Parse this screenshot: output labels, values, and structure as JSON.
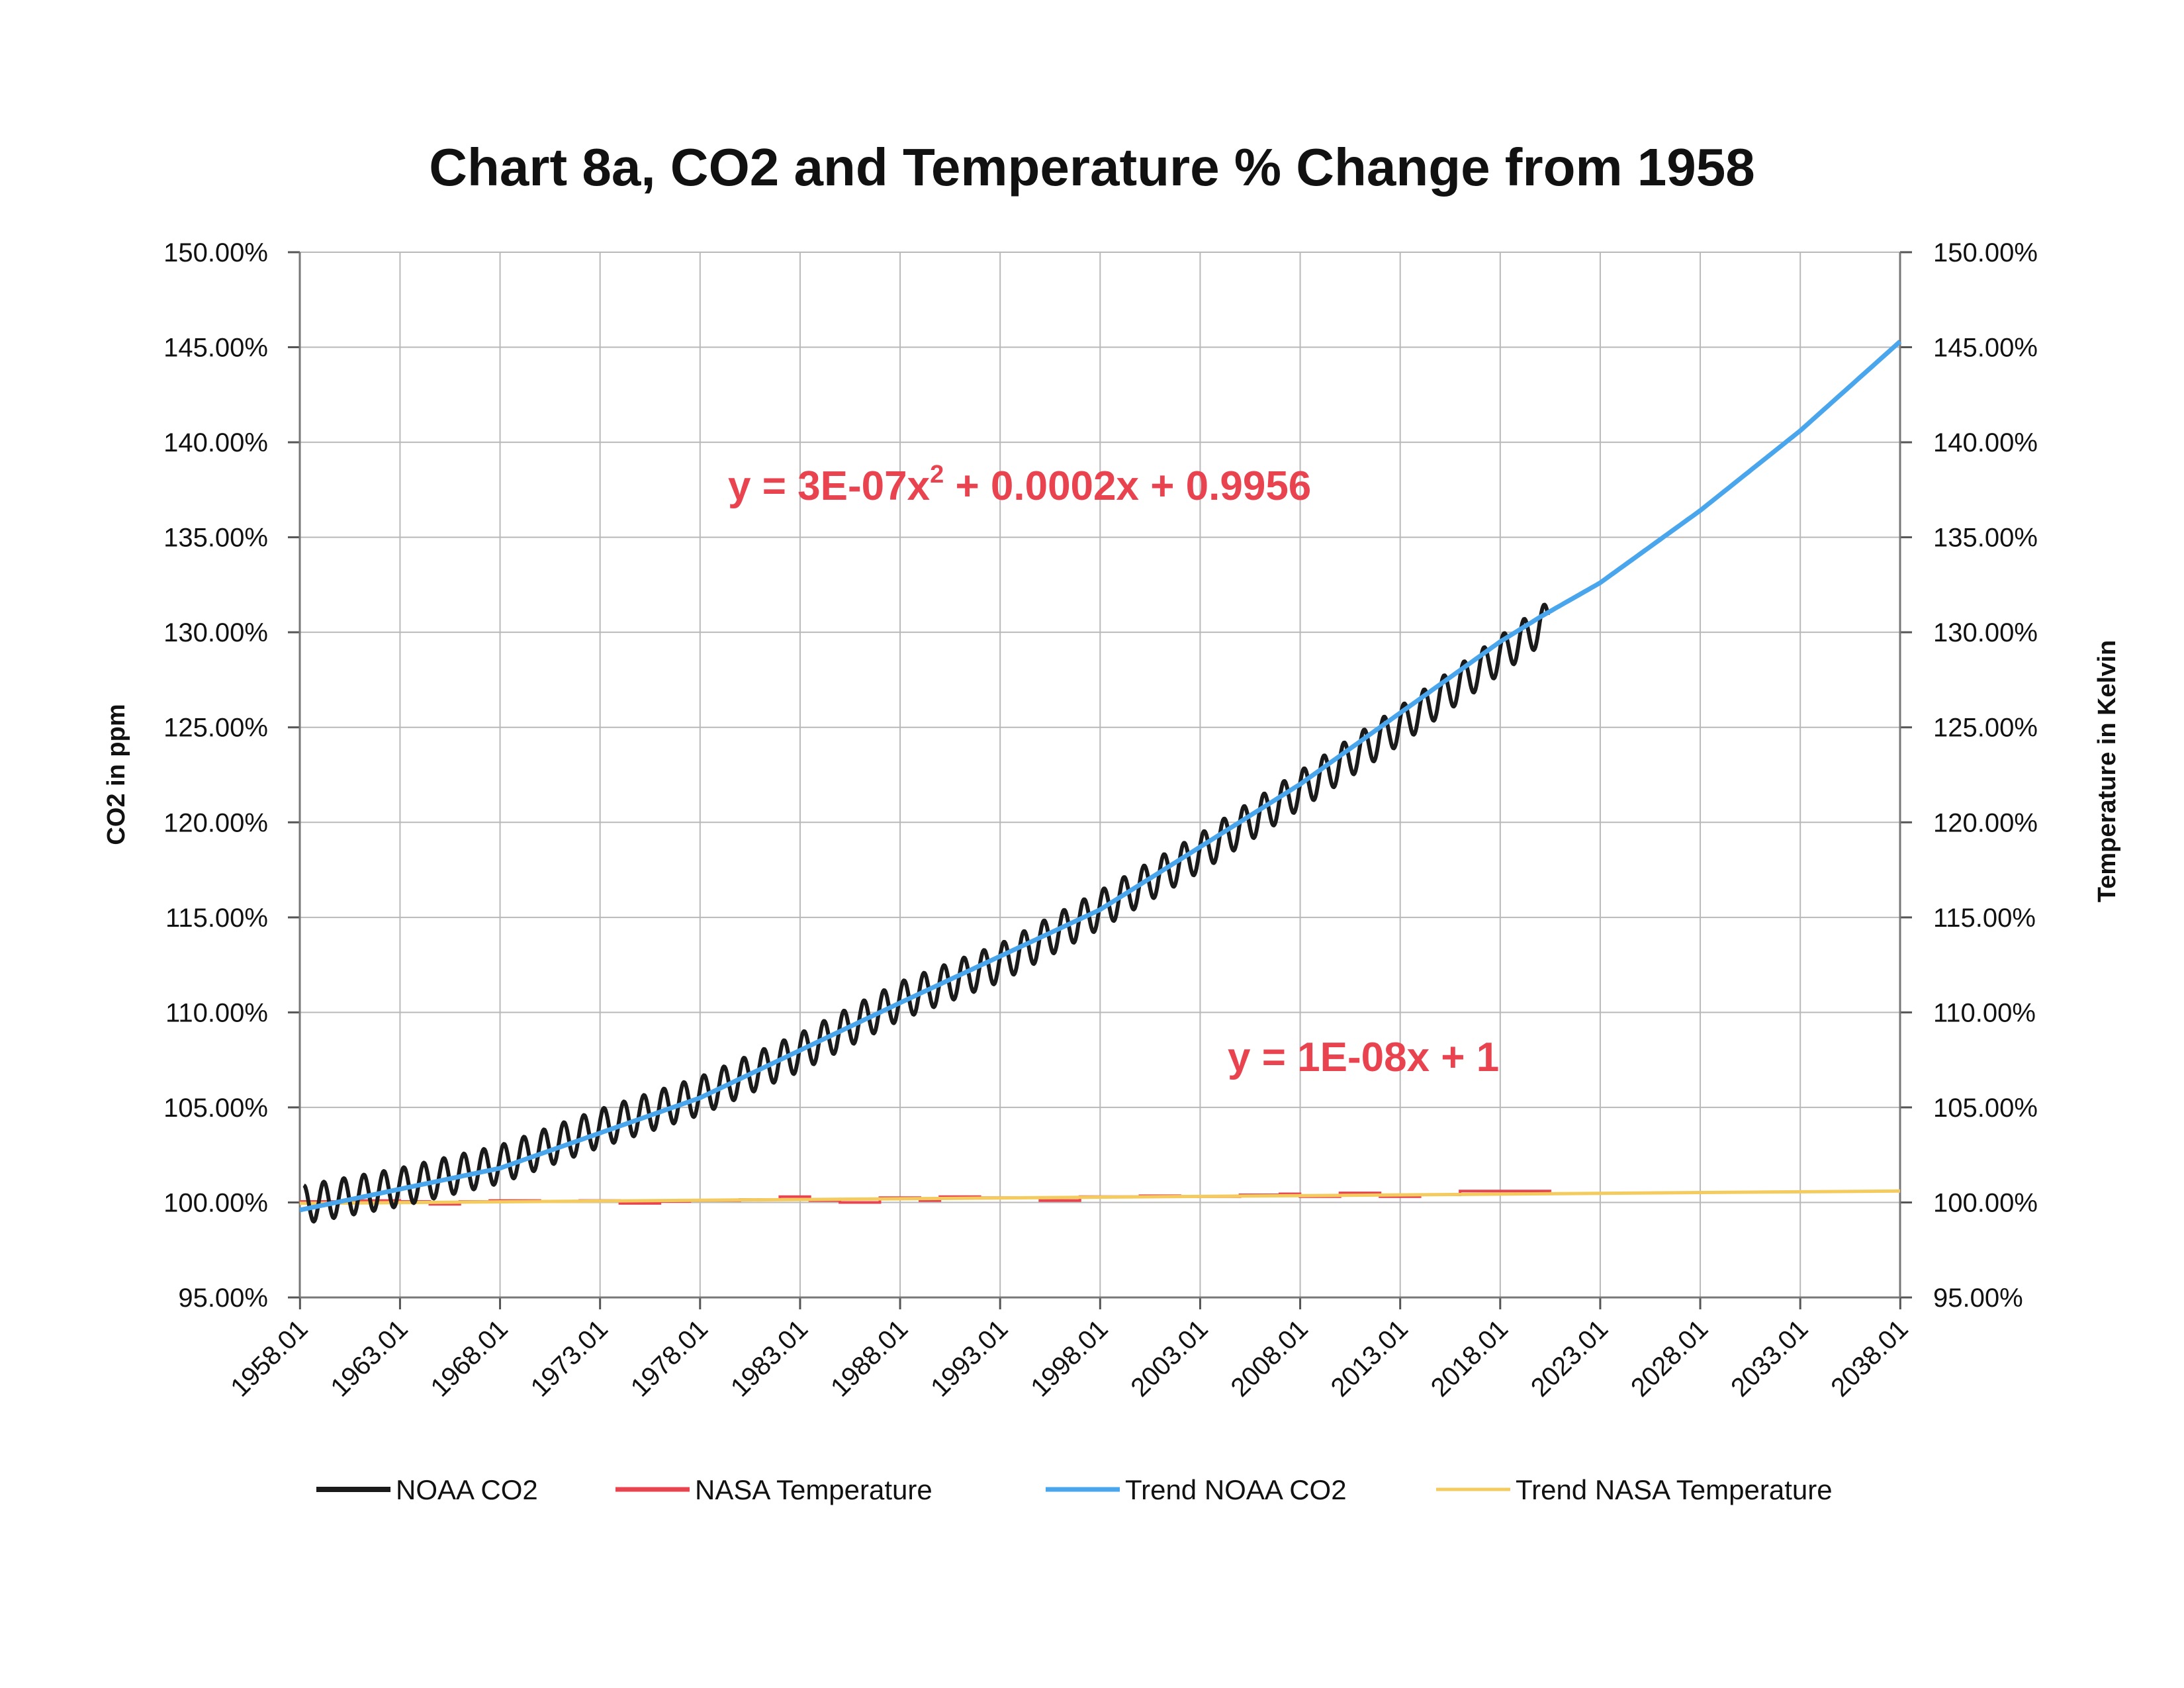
{
  "chart_data": {
    "type": "line",
    "title": "Chart 8a, CO2 and Temperature % Change from 1958",
    "ylabel": "CO2 in ppm",
    "y2label": "Temperature in Kelvin",
    "x_range": [
      1958,
      2038
    ],
    "ylim": [
      95,
      150
    ],
    "y2lim": [
      95,
      150
    ],
    "x_ticks": [
      "1958.01",
      "1963.01",
      "1968.01",
      "1973.01",
      "1978.01",
      "1983.01",
      "1988.01",
      "1993.01",
      "1998.01",
      "2003.01",
      "2008.01",
      "2013.01",
      "2018.01",
      "2023.01",
      "2028.01",
      "2033.01",
      "2038.01"
    ],
    "y_ticks": [
      "95.00%",
      "100.00%",
      "105.00%",
      "110.00%",
      "115.00%",
      "120.00%",
      "125.00%",
      "130.00%",
      "135.00%",
      "140.00%",
      "145.00%",
      "150.00%"
    ],
    "y_tick_values": [
      95,
      100,
      105,
      110,
      115,
      120,
      125,
      130,
      135,
      140,
      145,
      150
    ],
    "grid": true,
    "legend_position": "bottom",
    "annotations": {
      "co2_trend_equation": {
        "prefix": "y = 3E-07x",
        "sup": "2",
        "suffix": " + 0.0002x + 0.9956"
      },
      "temp_trend_equation": "y = 1E-08x + 1"
    },
    "series": [
      {
        "name": "NOAA CO2",
        "color": "#1a1a1a",
        "x_range": [
          1958.2,
          2020.4
        ],
        "seasonal_amplitude_pct": 1.0,
        "x": [
          1958.2,
          1963,
          1968,
          1973,
          1978,
          1983,
          1988,
          1993,
          1998,
          2003,
          2008,
          2013,
          2018,
          2020.4
        ],
        "values": [
          99.9,
          100.8,
          102.0,
          103.9,
          105.6,
          107.9,
          110.6,
          112.6,
          115.4,
          118.4,
          121.7,
          125.1,
          128.8,
          130.6
        ]
      },
      {
        "name": "NASA Temperature",
        "color": "#e8434f",
        "x": [
          1958.0,
          1961.0,
          1963.0,
          1964.5,
          1966.0,
          1967.5,
          1970.0,
          1972.0,
          1974.0,
          1976.0,
          1977.5,
          1980.0,
          1982.0,
          1983.5,
          1985.0,
          1987.0,
          1989.0,
          1990.0,
          1992.0,
          1995.0,
          1997.0,
          2000.0,
          2002.0,
          2005.0,
          2007.0,
          2008.0,
          2010.0,
          2012.0,
          2014.0,
          2016.0,
          2018.0,
          2020.5
        ],
        "values": [
          100.05,
          100.1,
          100.05,
          99.9,
          100.05,
          100.1,
          100.05,
          100.1,
          99.95,
          100.05,
          100.1,
          100.15,
          100.3,
          100.1,
          100.0,
          100.25,
          100.1,
          100.3,
          100.25,
          100.1,
          100.3,
          100.35,
          100.3,
          100.4,
          100.45,
          100.3,
          100.5,
          100.3,
          100.4,
          100.6,
          100.6,
          100.55
        ]
      },
      {
        "name": "Trend NOAA CO2",
        "color": "#4aa6ec",
        "x": [
          1958,
          1968,
          1978,
          1988,
          1998,
          2008,
          2018,
          2020,
          2023,
          2028,
          2033,
          2038
        ],
        "values": [
          99.6,
          101.8,
          105.5,
          110.5,
          115.4,
          122.0,
          129.5,
          130.8,
          132.6,
          136.4,
          140.6,
          145.3
        ]
      },
      {
        "name": "Trend NASA Temperature",
        "color": "#f4cb5e",
        "x": [
          1958,
          2038
        ],
        "values": [
          99.95,
          100.6
        ]
      }
    ]
  }
}
